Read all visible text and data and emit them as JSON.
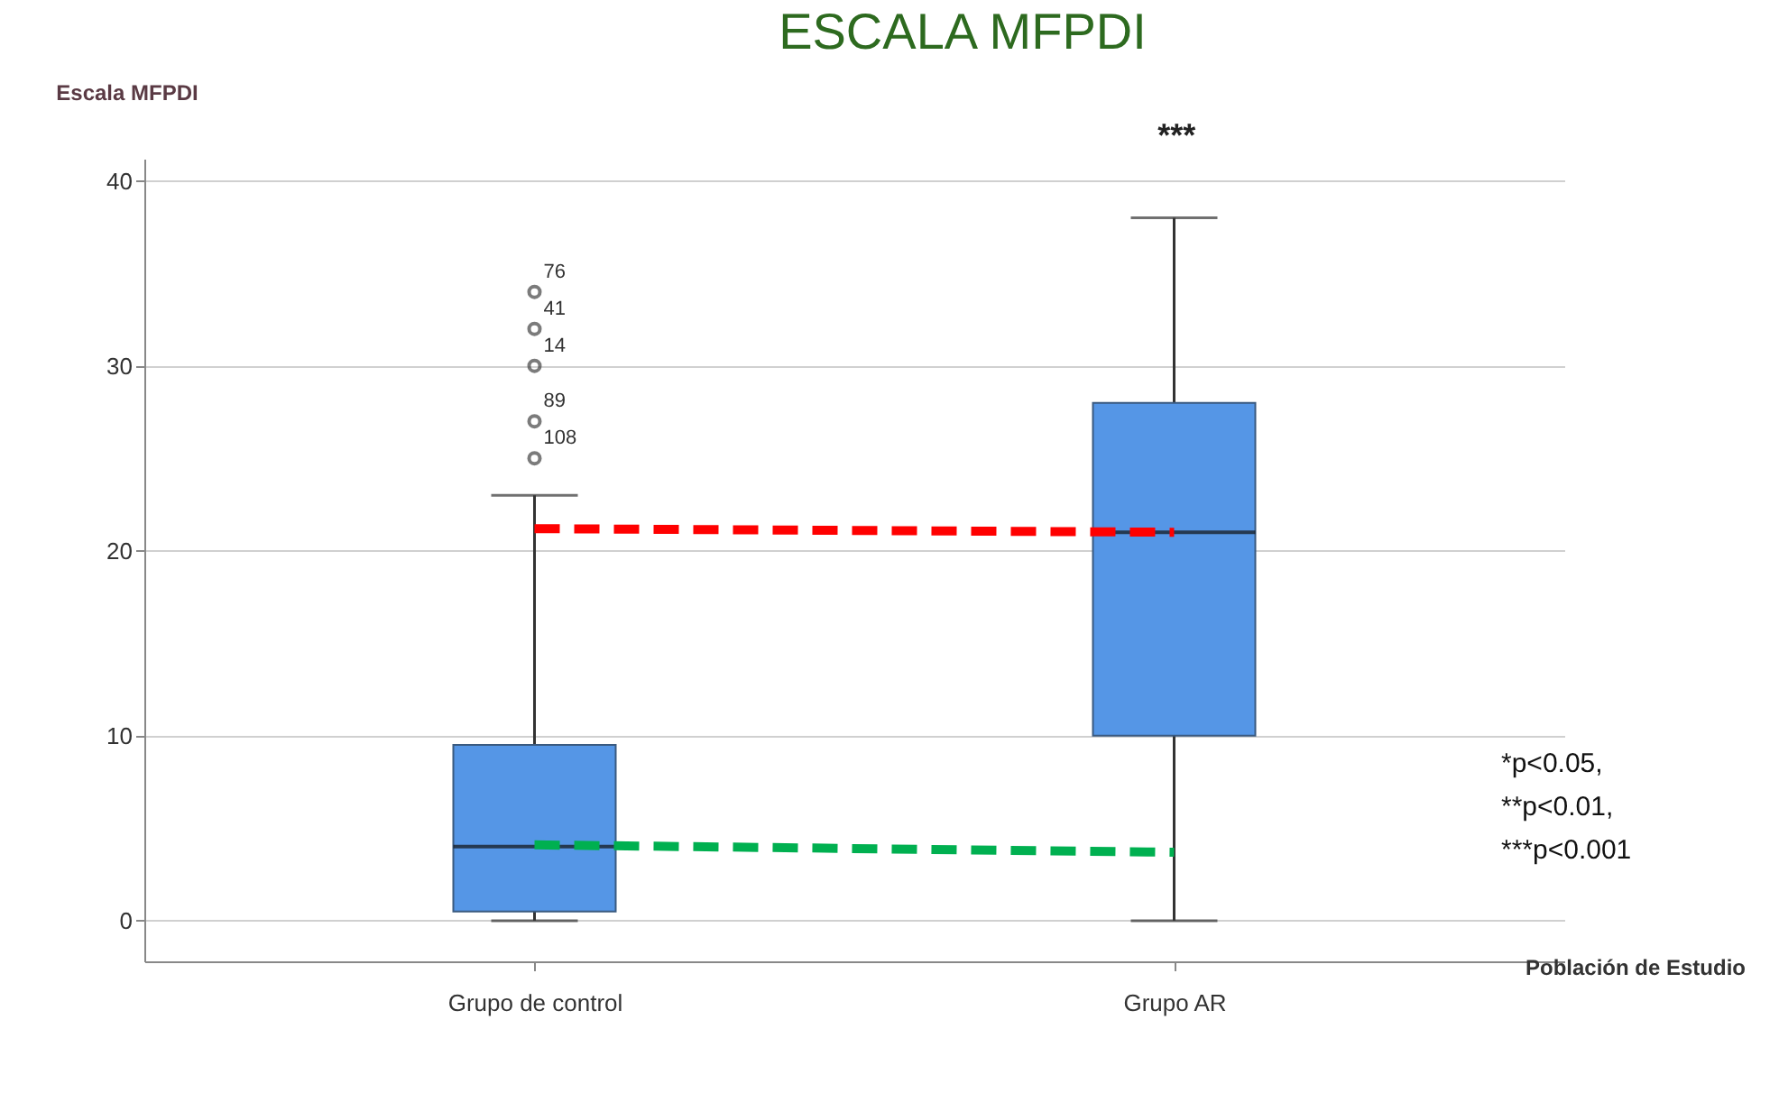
{
  "chart_data": {
    "type": "box",
    "title": "ESCALA MFPDI",
    "xlabel": "Población de Estudio",
    "ylabel": "Escala MFPDI",
    "categories": [
      "Grupo de control",
      "Grupo AR"
    ],
    "series": [
      {
        "type": "box",
        "color": "#5596e6",
        "boxes": [
          {
            "low": 0,
            "q1": 0.5,
            "median": 4,
            "q3": 9.5,
            "high": 23,
            "outliers": [
              34,
              32,
              30,
              27,
              25
            ]
          },
          {
            "low": 0,
            "q1": 10,
            "median": 21,
            "q3": 28,
            "high": 38
          }
        ]
      },
      {
        "type": "line",
        "x": [
          "Grupo de control",
          "Grupo AR"
        ],
        "values": [
          21.2,
          21.0
        ],
        "color": "#ff0000",
        "line_style": "dashed"
      },
      {
        "type": "line",
        "x": [
          "Grupo de control",
          "Grupo AR"
        ],
        "values": [
          4.1,
          3.7
        ],
        "color": "#00b050",
        "line_style": "dashed"
      }
    ],
    "ylim": [
      -2.2,
      41.2
    ],
    "yticks": [
      0,
      10,
      20,
      30,
      40
    ],
    "grid": "y",
    "annotations": [
      "76",
      "41",
      "14",
      "89",
      "108",
      "***",
      "*p<0.05,",
      "**p<0.01,",
      "***p<0.001"
    ]
  }
}
